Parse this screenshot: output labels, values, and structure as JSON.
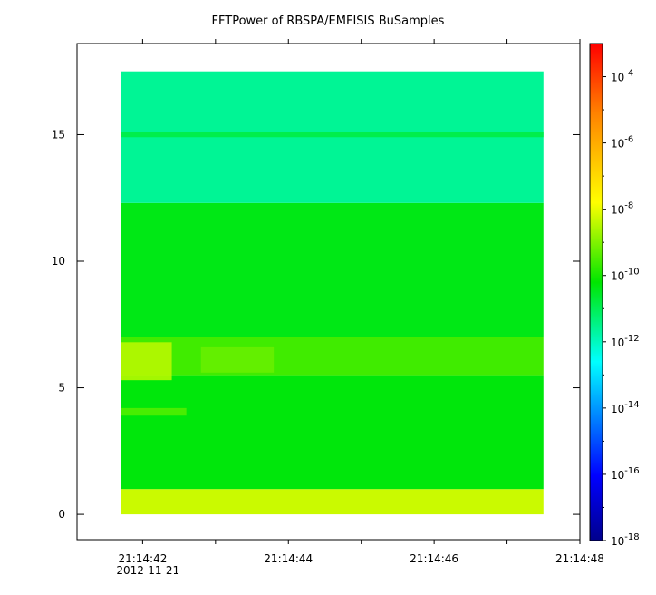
{
  "chart_data": {
    "type": "heatmap",
    "title": "FFTPower of RBSPA/EMFISIS  BuSamples",
    "xlabel": "",
    "ylabel": "",
    "x_range": [
      "21:14:41.1",
      "21:14:48.0"
    ],
    "data_x_range": [
      "21:14:41.7",
      "21:14:47.5"
    ],
    "ylim": [
      -1,
      18.6
    ],
    "data_y_range": [
      0,
      17.5
    ],
    "x_ticks": [
      {
        "label": "21:14:42",
        "sublabel": "2012-11-21"
      },
      {
        "label": "21:14:44",
        "sublabel": ""
      },
      {
        "label": "21:14:46",
        "sublabel": ""
      },
      {
        "label": "21:14:48",
        "sublabel": ""
      }
    ],
    "y_ticks": [
      "0",
      "5",
      "10",
      "15"
    ],
    "y_tick_values": [
      0,
      5,
      10,
      15
    ],
    "colorbar": {
      "scale": "log",
      "range": [
        1e-18,
        0.001
      ],
      "tick_labels": [
        {
          "base": "10",
          "exp": "-4"
        },
        {
          "base": "10",
          "exp": "-6"
        },
        {
          "base": "10",
          "exp": "-8"
        },
        {
          "base": "10",
          "exp": "-10"
        },
        {
          "base": "10",
          "exp": "-12"
        },
        {
          "base": "10",
          "exp": "-14"
        },
        {
          "base": "10",
          "exp": "-16"
        },
        {
          "base": "10",
          "exp": "-18"
        }
      ],
      "tick_exponents": [
        -4,
        -6,
        -8,
        -10,
        -12,
        -14,
        -16,
        -18
      ]
    },
    "power_bands": [
      {
        "y_from": 0.0,
        "y_to": 1.0,
        "log_power": -8.3
      },
      {
        "y_from": 1.0,
        "y_to": 5.5,
        "log_power": -10.3
      },
      {
        "y_from": 5.5,
        "y_to": 7.0,
        "log_power": -9.6
      },
      {
        "y_from": 7.0,
        "y_to": 12.3,
        "log_power": -10.4
      },
      {
        "y_from": 12.3,
        "y_to": 17.5,
        "log_power": -11.6
      }
    ],
    "features": [
      {
        "t_from": "21:14:41.7",
        "t_to": "21:14:42.4",
        "y_from": 5.3,
        "y_to": 6.8,
        "log_power": -8.4
      },
      {
        "t_from": "21:14:42.8",
        "t_to": "21:14:43.8",
        "y_from": 5.6,
        "y_to": 6.6,
        "log_power": -9.2
      },
      {
        "t_from": "21:14:41.7",
        "t_to": "21:14:42.6",
        "y_from": 3.9,
        "y_to": 4.2,
        "log_power": -9.4
      },
      {
        "t_from": "21:14:41.7",
        "t_to": "21:14:47.5",
        "y_from": 14.9,
        "y_to": 15.1,
        "log_power": -10.8
      }
    ],
    "grid": false,
    "legend": "none"
  }
}
